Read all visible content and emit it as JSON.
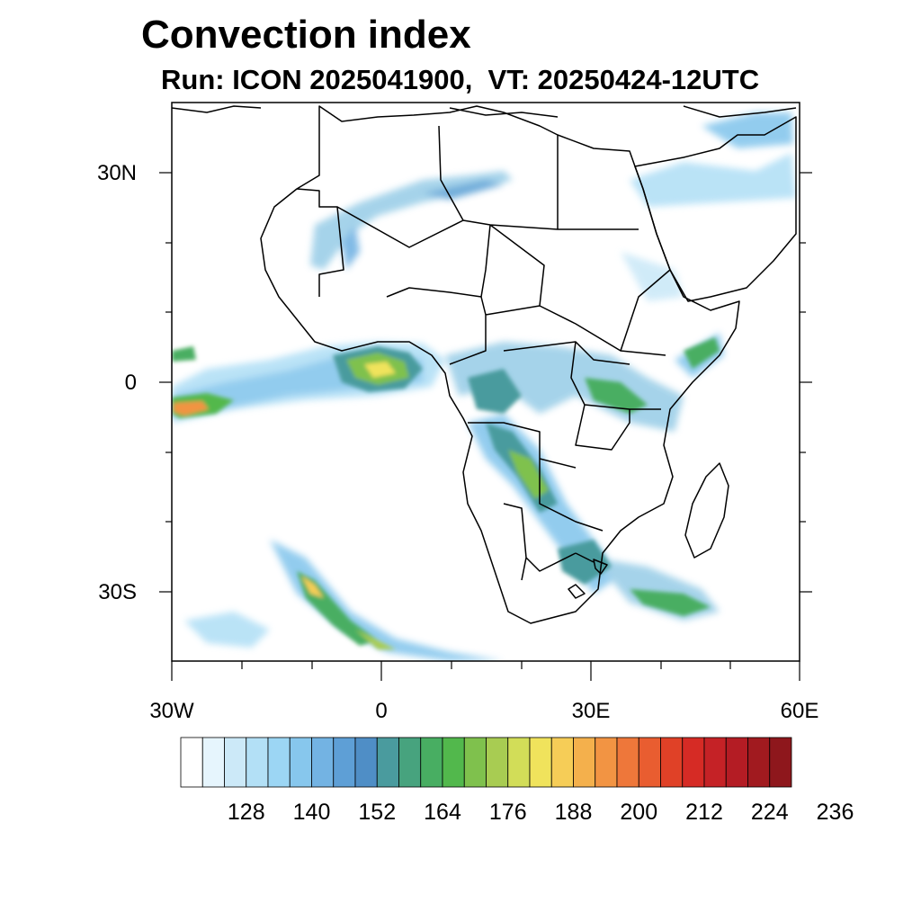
{
  "title": "Convection index",
  "subtitle": "Run: ICON 2025041900,  VT: 20250424-12UTC",
  "map": {
    "projection": "cylindrical equidistant",
    "lon_range": [
      -30,
      60
    ],
    "lat_range": [
      -40,
      40
    ],
    "lat_ticks": [
      "30N",
      "0",
      "30S"
    ],
    "lon_ticks": [
      "30W",
      "0",
      "30E",
      "60E"
    ]
  },
  "colorbar": {
    "colors": [
      "#ffffff",
      "#e6f5fd",
      "#cce9f8",
      "#b3e0f6",
      "#9cd6f4",
      "#87c7ed",
      "#73b3e3",
      "#5e9fd6",
      "#4f8ec6",
      "#4a9b9e",
      "#47a37e",
      "#48ae62",
      "#52b84c",
      "#7fc14d",
      "#a8cc52",
      "#d2dd58",
      "#f0e35c",
      "#f6cd57",
      "#f4b04c",
      "#f29443",
      "#ee773a",
      "#e95d30",
      "#e04127",
      "#d62b25",
      "#c52226",
      "#b41c24",
      "#a11a1f",
      "#8e171c"
    ],
    "labels": [
      "128",
      "140",
      "152",
      "164",
      "176",
      "188",
      "200",
      "212",
      "224",
      "236"
    ]
  }
}
